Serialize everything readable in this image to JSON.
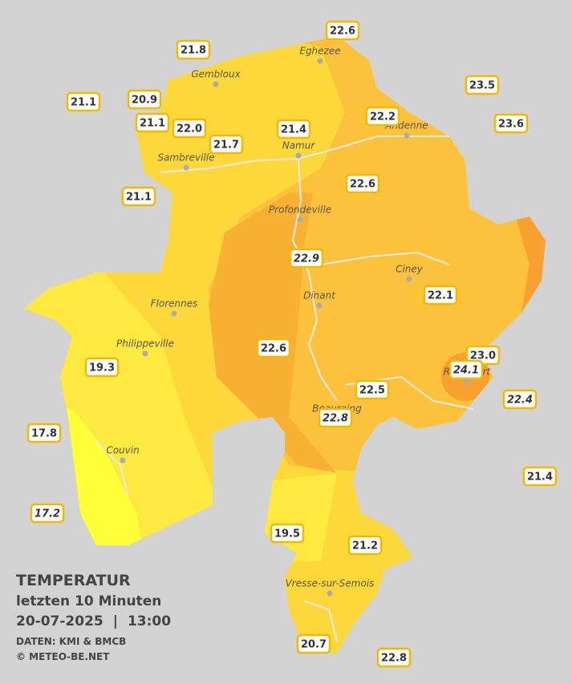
{
  "stations": [
    "22.6",
    "21.8",
    "23.5",
    "21.1",
    "20.9",
    "22.2",
    "21.1",
    "22.0",
    "21.7",
    "21.4",
    "23.6",
    "22.6",
    "21.1",
    "22.9",
    "22.1",
    "22.6",
    "23.0",
    "19.3",
    "24.1",
    "22.5",
    "22.4",
    "22.8",
    "17.8",
    "21.4",
    "17.2",
    "19.5",
    "21.2",
    "20.7",
    "22.8"
  ],
  "places": [
    "Eghezee",
    "Gembloux",
    "Andenne",
    "Namur",
    "Sambreville",
    "Profondeville",
    "Ciney",
    "Dinant",
    "Florennes",
    "Philippeville",
    "Rochefort",
    "Beauraing",
    "Couvin",
    "Vresse-sur-Semois"
  ],
  "legend": {
    "title": "TEMPERATUR",
    "period": "letzten 10 Minuten",
    "date": "20-07-2025",
    "separator": "|",
    "time": "13:00",
    "source": "DATEN: KMI & BMCB",
    "copyright": "© METEO-BE.NET"
  }
}
